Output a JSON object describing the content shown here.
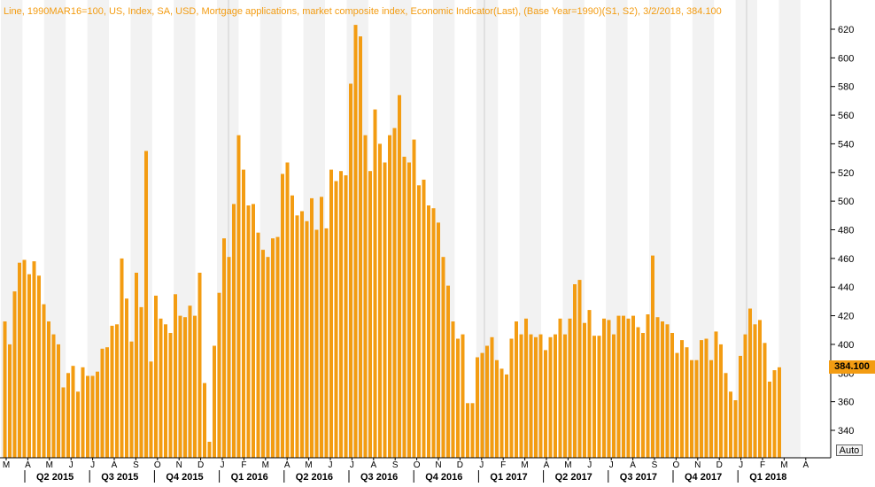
{
  "header": "Line, 1990MAR16=100, US, Index, SA, USD, Mortgage applications, market composite index, Economic Indicator(Last), (Base Year=1990)(S1, S2), 3/2/2018, 384.100",
  "last_value_label": "384.100",
  "auto_button": "Auto",
  "colors": {
    "bar": "#f39c12",
    "stripe": "#f2f2f2",
    "header_text": "#f39c12",
    "axis": "#000000"
  },
  "chart_data": {
    "type": "bar",
    "title": "",
    "ylim": [
      330,
      630
    ],
    "yticks": [
      340,
      360,
      380,
      400,
      420,
      440,
      460,
      480,
      500,
      520,
      540,
      560,
      580,
      600,
      620
    ],
    "grid": false,
    "month_labels": [
      "M",
      "A",
      "M",
      "J",
      "J",
      "A",
      "S",
      "O",
      "N",
      "D",
      "J",
      "F",
      "M",
      "A",
      "M",
      "J",
      "J",
      "A",
      "S",
      "O",
      "N",
      "D",
      "J",
      "F",
      "M",
      "A",
      "M",
      "J",
      "J",
      "A",
      "S",
      "O",
      "N",
      "D",
      "J",
      "F",
      "M",
      "A"
    ],
    "quarter_labels": [
      "Q2 2015",
      "Q3 2015",
      "Q4 2015",
      "Q1 2016",
      "Q2 2016",
      "Q3 2016",
      "Q4 2016",
      "Q1 2017",
      "Q2 2017",
      "Q3 2017",
      "Q4 2017",
      "Q1 2018"
    ],
    "values": [
      416,
      400,
      437,
      457,
      459,
      449,
      458,
      448,
      428,
      416,
      407,
      400,
      370,
      380,
      385,
      367,
      384,
      378,
      378,
      381,
      397,
      398,
      413,
      414,
      460,
      432,
      402,
      450,
      426,
      535,
      388,
      434,
      418,
      414,
      408,
      435,
      420,
      419,
      427,
      420,
      450,
      373,
      332,
      399,
      436,
      474,
      461,
      498,
      546,
      522,
      497,
      498,
      478,
      466,
      461,
      474,
      475,
      519,
      527,
      504,
      490,
      493,
      486,
      502,
      480,
      503,
      481,
      522,
      514,
      521,
      518,
      582,
      623,
      615,
      546,
      521,
      564,
      540,
      527,
      546,
      551,
      574,
      531,
      527,
      543,
      511,
      515,
      497,
      495,
      485,
      461,
      441,
      416,
      404,
      407,
      359,
      359,
      391,
      394,
      399,
      405,
      389,
      383,
      379,
      404,
      416,
      407,
      418,
      407,
      405,
      407,
      396,
      405,
      407,
      418,
      407,
      418,
      442,
      445,
      415,
      424,
      406,
      406,
      418,
      417,
      407,
      420,
      420,
      418,
      420,
      412,
      408,
      421,
      462,
      419,
      416,
      414,
      408,
      394,
      403,
      398,
      389,
      389,
      403,
      404,
      389,
      409,
      400,
      380,
      367,
      361,
      392,
      407,
      425,
      414,
      417,
      401,
      374,
      382,
      384
    ]
  }
}
